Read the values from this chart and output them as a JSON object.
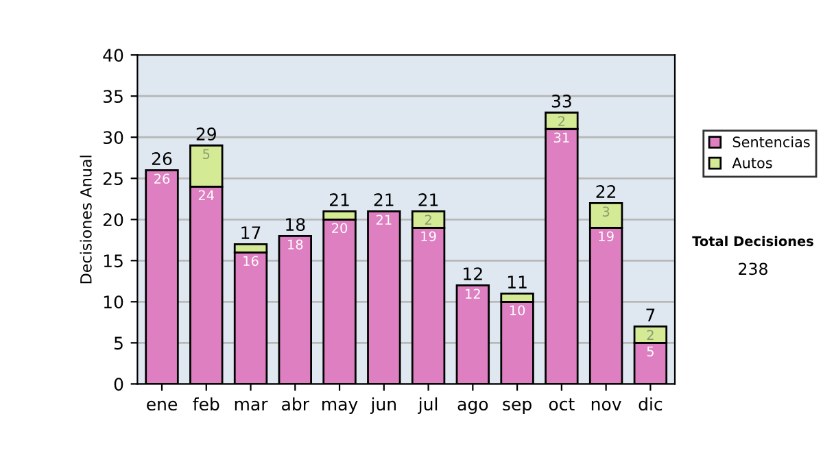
{
  "chart_data": {
    "type": "bar",
    "stacked": true,
    "ylabel": "Decisiones Anual",
    "categories": [
      "ene",
      "feb",
      "mar",
      "abr",
      "may",
      "jun",
      "jul",
      "ago",
      "sep",
      "oct",
      "nov",
      "dic"
    ],
    "series": [
      {
        "name": "Sentencias",
        "color": "#dd7fc0",
        "values": [
          26,
          24,
          16,
          18,
          20,
          21,
          19,
          12,
          10,
          31,
          19,
          5
        ],
        "value_labels": [
          "26",
          "24",
          "16",
          "18",
          "20",
          "21",
          "19",
          "12",
          "10",
          "31",
          "19",
          "5"
        ]
      },
      {
        "name": "Autos",
        "color": "#d4ea94",
        "values": [
          0,
          5,
          1,
          0,
          1,
          0,
          2,
          0,
          1,
          2,
          3,
          2
        ],
        "value_labels": [
          null,
          "5",
          null,
          null,
          null,
          null,
          "2",
          null,
          null,
          "2",
          "3",
          "2"
        ]
      }
    ],
    "totals": [
      "26",
      "29",
      "17",
      "18",
      "21",
      "21",
      "21",
      "12",
      "11",
      "33",
      "22",
      "7"
    ],
    "ylim": [
      0,
      40
    ],
    "yticks": [
      0,
      5,
      10,
      15,
      20,
      25,
      30,
      35,
      40
    ],
    "grid": "y",
    "legend": "right",
    "annotations": [
      "Total Decisiones",
      "238"
    ]
  }
}
